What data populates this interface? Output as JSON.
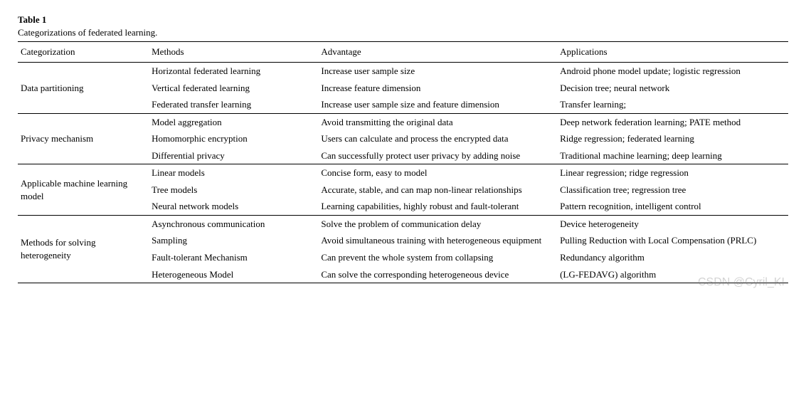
{
  "table_label": "Table 1",
  "caption": "Categorizations of federated learning.",
  "columns": [
    "Categorization",
    "Methods",
    "Advantage",
    "Applications"
  ],
  "column_widths_pct": [
    17,
    22,
    31,
    30
  ],
  "font_family": "Georgia, 'Times New Roman', serif",
  "font_size_pt": 13,
  "text_color": "#000000",
  "background_color": "#ffffff",
  "border_color": "#000000",
  "groups": [
    {
      "category": "Data partitioning",
      "rows": [
        {
          "method": "Horizontal federated learning",
          "advantage": "Increase user sample size",
          "application": "Android phone model update; logistic regression"
        },
        {
          "method": "Vertical federated learning",
          "advantage": "Increase feature dimension",
          "application": "Decision tree; neural network"
        },
        {
          "method": "Federated transfer learning",
          "advantage": "Increase user sample size and feature dimension",
          "application": "Transfer learning;"
        }
      ]
    },
    {
      "category": "Privacy mechanism",
      "rows": [
        {
          "method": "Model aggregation",
          "advantage": "Avoid transmitting the original data",
          "application": "Deep network federation learning; PATE method"
        },
        {
          "method": "Homomorphic encryption",
          "advantage": "Users can calculate and process the encrypted data",
          "application": "Ridge regression; federated learning"
        },
        {
          "method": "Differential privacy",
          "advantage": "Can successfully protect user privacy by adding noise",
          "application": "Traditional machine learning; deep learning"
        }
      ]
    },
    {
      "category": "Applicable machine learning model",
      "rows": [
        {
          "method": "Linear models",
          "advantage": "Concise form, easy to model",
          "application": "Linear regression; ridge regression"
        },
        {
          "method": "Tree models",
          "advantage": "Accurate, stable, and can map non-linear relationships",
          "application": "Classification tree; regression tree"
        },
        {
          "method": "Neural network models",
          "advantage": "Learning capabilities, highly robust and fault-tolerant",
          "application": "Pattern recognition, intelligent control"
        }
      ]
    },
    {
      "category": "Methods for solving heterogeneity",
      "rows": [
        {
          "method": "Asynchronous communication",
          "advantage": "Solve the problem of communication delay",
          "application": "Device heterogeneity"
        },
        {
          "method": "Sampling",
          "advantage": "Avoid simultaneous training with heterogeneous equipment",
          "application": "Pulling Reduction with Local Compensation (PRLC)"
        },
        {
          "method": "Fault-tolerant Mechanism",
          "advantage": "Can prevent the whole system from collapsing",
          "application": "Redundancy algorithm"
        },
        {
          "method": "Heterogeneous Model",
          "advantage": "Can solve the corresponding heterogeneous device",
          "application": "(LG-FEDAVG) algorithm"
        }
      ]
    }
  ],
  "watermark": "CSDN @Cyril_KI"
}
